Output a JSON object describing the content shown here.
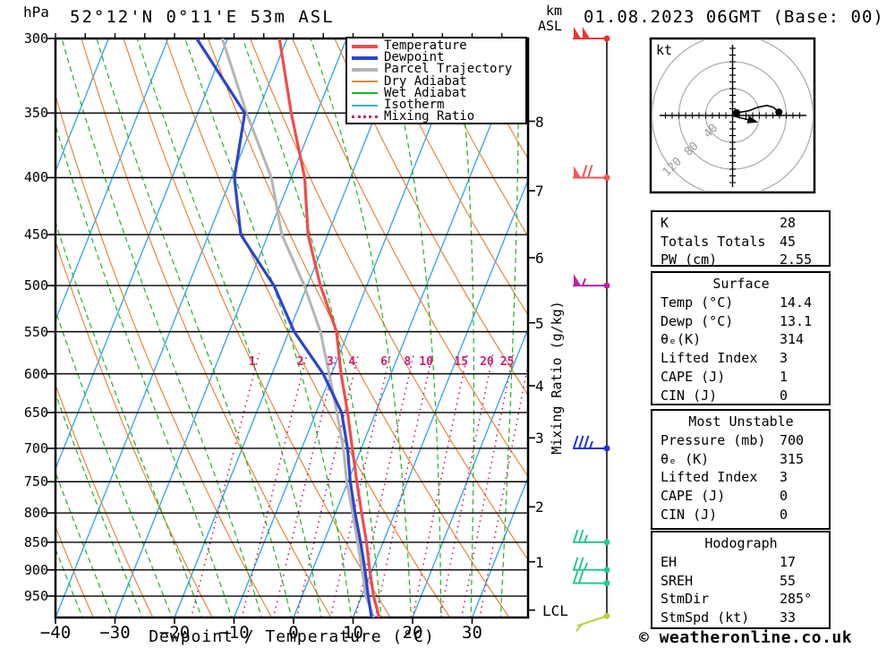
{
  "header": {
    "station_title": "52°12'N 0°11'E 53m ASL",
    "date_title": "01.08.2023 06GMT (Base: 00)",
    "pressure_unit": "hPa",
    "altitude_unit_line1": "km",
    "altitude_unit_line2": "ASL"
  },
  "axes": {
    "pressure_ticks_hpa": [
      300,
      350,
      400,
      450,
      500,
      550,
      600,
      650,
      700,
      750,
      800,
      850,
      900,
      950
    ],
    "temp_ticks_c": [
      -40,
      -30,
      -20,
      -10,
      0,
      10,
      20,
      30
    ],
    "km_ticks": [
      {
        "label": "8",
        "p_hpa": 356
      },
      {
        "label": "7",
        "p_hpa": 411
      },
      {
        "label": "6",
        "p_hpa": 472
      },
      {
        "label": "5",
        "p_hpa": 540
      },
      {
        "label": "4",
        "p_hpa": 615
      },
      {
        "label": "3",
        "p_hpa": 685
      },
      {
        "label": "2",
        "p_hpa": 790
      },
      {
        "label": "1",
        "p_hpa": 885
      },
      {
        "label": "LCL",
        "p_hpa": 978
      }
    ],
    "x_label": "Dewpoint / Temperature (°C)",
    "mixing_axis_label": "Mixing Ratio (g/kg)"
  },
  "legend": {
    "items": [
      {
        "label": "Temperature",
        "color": "#f04c4c",
        "kind": "thick"
      },
      {
        "label": "Dewpoint",
        "color": "#2946cf",
        "kind": "thick"
      },
      {
        "label": "Parcel Trajectory",
        "color": "#b4b4b4",
        "kind": "thick"
      },
      {
        "label": "Dry Adiabat",
        "color": "#e5873a",
        "kind": "thin"
      },
      {
        "label": "Wet Adiabat",
        "color": "#1eb41e",
        "kind": "thin"
      },
      {
        "label": "Isotherm",
        "color": "#3aa8e8",
        "kind": "thin"
      },
      {
        "label": "Mixing Ratio",
        "color": "#cf1f74",
        "kind": "dotted"
      }
    ]
  },
  "chart_data": {
    "type": "line",
    "diagram": "skew-T log-P sounding",
    "title": "52°12'N 0°11'E 53m ASL — 01.08.2023 06GMT (Base: 00)",
    "xlabel": "Dewpoint / Temperature (°C)",
    "xlim_c": [
      -40,
      39
    ],
    "pressure_range_hpa": [
      300,
      993
    ],
    "pressure_levels_hpa": [
      300,
      350,
      400,
      450,
      500,
      550,
      600,
      650,
      700,
      750,
      800,
      850,
      900,
      950,
      993
    ],
    "series": [
      {
        "name": "Temperature",
        "color": "#f04c4c",
        "values_c": [
          -41.3,
          -34.3,
          -27.7,
          -23.3,
          -17.8,
          -12.0,
          -8.4,
          -4.7,
          -1.5,
          1.5,
          4.4,
          7.2,
          9.6,
          12.0,
          14.4
        ]
      },
      {
        "name": "Dewpoint",
        "color": "#2946cf",
        "values_c": [
          -55.2,
          -42.1,
          -39.5,
          -34.6,
          -25.6,
          -19.1,
          -11.4,
          -5.7,
          -2.3,
          0.4,
          3.3,
          6.2,
          8.8,
          11.1,
          13.1
        ]
      },
      {
        "name": "Parcel Trajectory",
        "color": "#b4b4b4",
        "values_c": [
          -50.9,
          -41.8,
          -33.3,
          -27.7,
          -20.5,
          -14.7,
          -10.4,
          -6.5,
          -3.0,
          -0.2,
          2.9,
          5.7,
          8.3,
          10.7,
          13.5
        ]
      }
    ],
    "isotherms_c": {
      "min": -80,
      "max": 30,
      "step": 10
    },
    "dry_adiabats_theta_k": {
      "min": 240,
      "max": 400,
      "step": 10
    },
    "wet_adiabats_surface_c": {
      "min": -60,
      "max": 40,
      "step": 5
    },
    "mixing_ratio_lines_g_kg": [
      1,
      2,
      3,
      4,
      6,
      8,
      10,
      15,
      20,
      25,
      30
    ],
    "mixing_ratio_labels": [
      "1",
      "2",
      "3",
      "4",
      "6",
      "8",
      "10",
      "15",
      "20",
      "25"
    ],
    "wind_barbs": [
      {
        "p_hpa": 300,
        "speed_kt": 100,
        "color": "#ee3333"
      },
      {
        "p_hpa": 400,
        "speed_kt": 70,
        "color": "#f25555"
      },
      {
        "p_hpa": 500,
        "speed_kt": 55,
        "color": "#bb22aa"
      },
      {
        "p_hpa": 700,
        "speed_kt": 35,
        "color": "#2233dd"
      },
      {
        "p_hpa": 850,
        "speed_kt": 25,
        "color": "#25c892"
      },
      {
        "p_hpa": 900,
        "speed_kt": 25,
        "color": "#25c892"
      },
      {
        "p_hpa": 925,
        "speed_kt": 20,
        "color": "#25c892"
      },
      {
        "p_hpa": 990,
        "speed_kt": 5,
        "color": "#b5d233"
      }
    ],
    "colors": {
      "grid": "#000000",
      "isotherm": "#3aa8e8",
      "dry_adiabat": "#e5873a",
      "wet_adiabat": "#1eb41e",
      "mixing_ratio": "#cf1f74",
      "temperature": "#f04c4c",
      "dewpoint": "#2946cf",
      "parcel": "#b4b4b4"
    }
  },
  "hodograph": {
    "unit_label": "kt",
    "ring_speeds_kt": [
      40,
      80,
      120
    ],
    "ring_labels": [
      "40",
      "80",
      "120"
    ],
    "trace_kt": [
      [
        6,
        4
      ],
      [
        24,
        7
      ],
      [
        37,
        12
      ],
      [
        51,
        15
      ],
      [
        61,
        12
      ],
      [
        69,
        5
      ]
    ],
    "trace_dots_kt": [
      [
        6,
        4
      ],
      [
        69,
        5
      ]
    ],
    "storm_motion_kt": [
      31.9,
      -8.5
    ]
  },
  "stats": {
    "boxes": [
      {
        "title": "",
        "rows": [
          [
            "K",
            "28"
          ],
          [
            "Totals Totals",
            "45"
          ],
          [
            "PW (cm)",
            "2.55"
          ]
        ]
      },
      {
        "title": "Surface",
        "rows": [
          [
            "Temp (°C)",
            "14.4"
          ],
          [
            "Dewp (°C)",
            "13.1"
          ],
          [
            "θₑ(K)",
            "314"
          ],
          [
            "Lifted Index",
            "3"
          ],
          [
            "CAPE (J)",
            "1"
          ],
          [
            "CIN (J)",
            "0"
          ]
        ]
      },
      {
        "title": "Most Unstable",
        "rows": [
          [
            "Pressure (mb)",
            "700"
          ],
          [
            "θₑ (K)",
            "315"
          ],
          [
            "Lifted Index",
            "3"
          ],
          [
            "CAPE (J)",
            "0"
          ],
          [
            "CIN (J)",
            "0"
          ]
        ]
      },
      {
        "title": "Hodograph",
        "rows": [
          [
            "EH",
            "17"
          ],
          [
            "SREH",
            "55"
          ],
          [
            "StmDir",
            "285°"
          ],
          [
            "StmSpd (kt)",
            "33"
          ]
        ]
      }
    ]
  },
  "footer": {
    "copyright": "© weatheronline.co.uk"
  }
}
